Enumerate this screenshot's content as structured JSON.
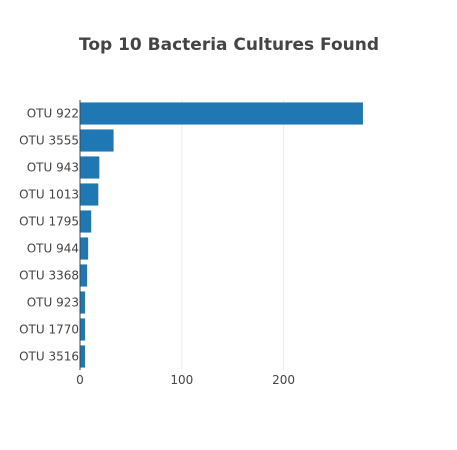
{
  "chart_data": {
    "type": "bar",
    "orientation": "horizontal",
    "title": "Top 10 Bacteria Cultures Found",
    "xlabel": "",
    "ylabel": "",
    "categories": [
      "OTU 922",
      "OTU 3555",
      "OTU 943",
      "OTU 1013",
      "OTU 1795",
      "OTU 944",
      "OTU 3368",
      "OTU 923",
      "OTU 1770",
      "OTU 3516"
    ],
    "values": [
      278,
      33,
      19,
      18,
      11,
      8,
      7,
      5,
      5,
      5
    ],
    "xlim": [
      0,
      282
    ],
    "x_ticks": [
      0,
      100,
      200
    ],
    "grid": true,
    "bar_color": "#1f77b4"
  }
}
